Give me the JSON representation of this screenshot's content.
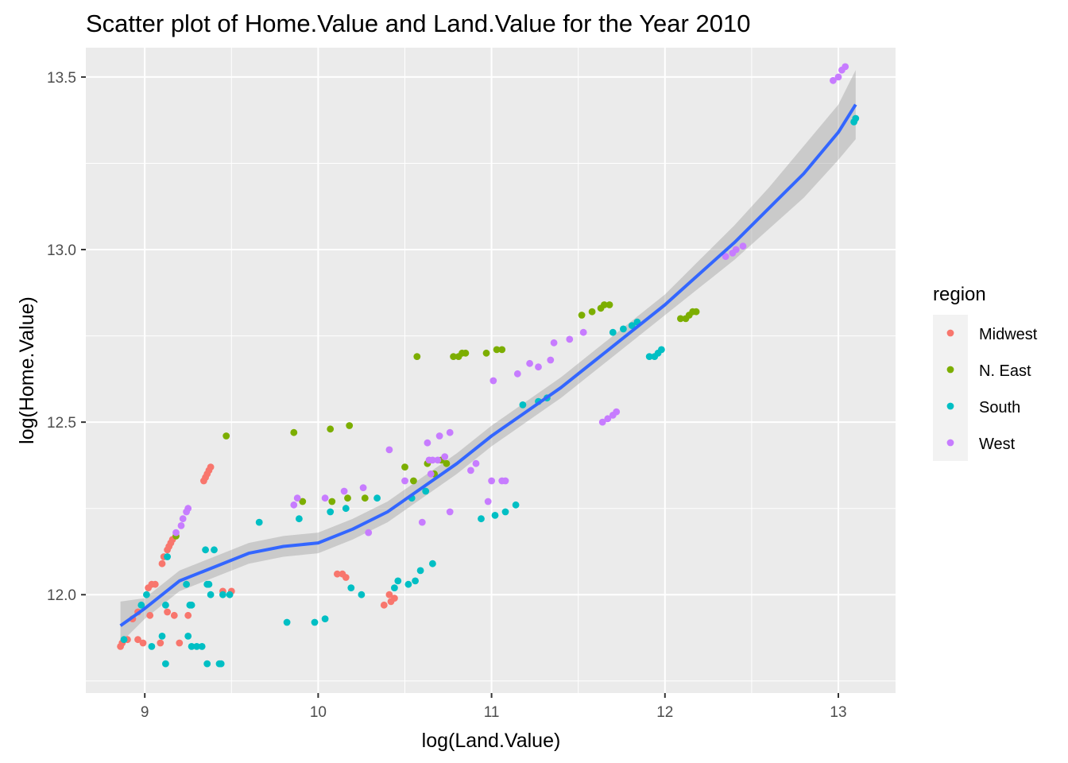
{
  "chart_data": {
    "type": "scatter",
    "title": "Scatter plot of Home.Value and Land.Value for the Year 2010",
    "xlabel": "log(Land.Value)",
    "ylabel": "log(Home.Value)",
    "xlim": [
      8.66,
      13.33
    ],
    "ylim": [
      11.715,
      13.585
    ],
    "xticks": [
      9,
      10,
      11,
      12,
      13
    ],
    "yticks": [
      12.0,
      12.5,
      13.0,
      13.5
    ],
    "xtick_labels": [
      "9",
      "10",
      "11",
      "12",
      "13"
    ],
    "ytick_labels": [
      "12.0",
      "12.5",
      "13.0",
      "13.5"
    ],
    "grid": true,
    "legend": {
      "title": "region",
      "placement": "right"
    },
    "series": [
      {
        "name": "Midwest",
        "color": "#F8766D",
        "points": [
          [
            8.86,
            11.85
          ],
          [
            8.87,
            11.86
          ],
          [
            8.9,
            11.87
          ],
          [
            8.96,
            11.87
          ],
          [
            8.99,
            11.86
          ],
          [
            8.93,
            11.93
          ],
          [
            8.96,
            11.95
          ],
          [
            9.03,
            11.94
          ],
          [
            9.09,
            11.86
          ],
          [
            9.02,
            12.02
          ],
          [
            9.04,
            12.03
          ],
          [
            9.06,
            12.03
          ],
          [
            9.1,
            12.09
          ],
          [
            9.11,
            12.11
          ],
          [
            9.13,
            12.13
          ],
          [
            9.14,
            12.14
          ],
          [
            9.15,
            12.15
          ],
          [
            9.16,
            12.16
          ],
          [
            9.13,
            11.95
          ],
          [
            9.17,
            11.94
          ],
          [
            9.2,
            11.86
          ],
          [
            9.25,
            11.94
          ],
          [
            9.34,
            12.33
          ],
          [
            9.35,
            12.34
          ],
          [
            9.36,
            12.35
          ],
          [
            9.37,
            12.36
          ],
          [
            9.38,
            12.37
          ],
          [
            9.45,
            12.01
          ],
          [
            9.5,
            12.01
          ],
          [
            10.11,
            12.06
          ],
          [
            10.14,
            12.06
          ],
          [
            10.16,
            12.05
          ],
          [
            10.38,
            11.97
          ],
          [
            10.41,
            12.0
          ],
          [
            10.42,
            11.98
          ],
          [
            10.44,
            11.99
          ]
        ]
      },
      {
        "name": "N. East",
        "color": "#7CAE00",
        "points": [
          [
            9.18,
            12.17
          ],
          [
            9.47,
            12.46
          ],
          [
            9.86,
            12.47
          ],
          [
            9.91,
            12.27
          ],
          [
            10.07,
            12.48
          ],
          [
            10.08,
            12.27
          ],
          [
            10.18,
            12.49
          ],
          [
            10.17,
            12.28
          ],
          [
            10.27,
            12.28
          ],
          [
            10.5,
            12.37
          ],
          [
            10.55,
            12.33
          ],
          [
            10.57,
            12.69
          ],
          [
            10.63,
            12.38
          ],
          [
            10.67,
            12.35
          ],
          [
            10.71,
            12.39
          ],
          [
            10.74,
            12.38
          ],
          [
            10.78,
            12.69
          ],
          [
            10.81,
            12.69
          ],
          [
            10.83,
            12.7
          ],
          [
            10.85,
            12.7
          ],
          [
            10.97,
            12.7
          ],
          [
            11.03,
            12.71
          ],
          [
            11.06,
            12.71
          ],
          [
            11.52,
            12.81
          ],
          [
            11.58,
            12.82
          ],
          [
            11.63,
            12.83
          ],
          [
            11.65,
            12.84
          ],
          [
            11.68,
            12.84
          ],
          [
            12.09,
            12.8
          ],
          [
            12.12,
            12.8
          ],
          [
            12.14,
            12.81
          ],
          [
            12.16,
            12.82
          ],
          [
            12.18,
            12.82
          ]
        ]
      },
      {
        "name": "South",
        "color": "#00BFC4",
        "points": [
          [
            8.88,
            11.87
          ],
          [
            8.98,
            11.97
          ],
          [
            9.01,
            12.0
          ],
          [
            9.04,
            11.85
          ],
          [
            9.1,
            11.88
          ],
          [
            9.12,
            11.97
          ],
          [
            9.12,
            11.8
          ],
          [
            9.13,
            12.11
          ],
          [
            9.24,
            12.03
          ],
          [
            9.25,
            11.88
          ],
          [
            9.26,
            11.97
          ],
          [
            9.27,
            11.97
          ],
          [
            9.27,
            11.85
          ],
          [
            9.3,
            11.85
          ],
          [
            9.33,
            11.85
          ],
          [
            9.35,
            12.13
          ],
          [
            9.36,
            12.03
          ],
          [
            9.37,
            12.03
          ],
          [
            9.36,
            11.8
          ],
          [
            9.4,
            12.13
          ],
          [
            9.38,
            12.0
          ],
          [
            9.43,
            11.8
          ],
          [
            9.44,
            11.8
          ],
          [
            9.45,
            12.0
          ],
          [
            9.49,
            12.0
          ],
          [
            9.66,
            12.21
          ],
          [
            9.82,
            11.92
          ],
          [
            9.98,
            11.92
          ],
          [
            10.04,
            11.93
          ],
          [
            9.89,
            12.22
          ],
          [
            10.07,
            12.24
          ],
          [
            10.16,
            12.25
          ],
          [
            10.19,
            12.02
          ],
          [
            10.25,
            12.0
          ],
          [
            10.34,
            12.28
          ],
          [
            10.44,
            12.02
          ],
          [
            10.46,
            12.04
          ],
          [
            10.52,
            12.03
          ],
          [
            10.56,
            12.04
          ],
          [
            10.54,
            12.28
          ],
          [
            10.59,
            12.07
          ],
          [
            10.62,
            12.3
          ],
          [
            10.66,
            12.09
          ],
          [
            10.94,
            12.22
          ],
          [
            11.02,
            12.23
          ],
          [
            11.08,
            12.24
          ],
          [
            11.14,
            12.26
          ],
          [
            11.18,
            12.55
          ],
          [
            11.27,
            12.56
          ],
          [
            11.32,
            12.57
          ],
          [
            11.7,
            12.76
          ],
          [
            11.76,
            12.77
          ],
          [
            11.81,
            12.78
          ],
          [
            11.84,
            12.79
          ],
          [
            11.91,
            12.69
          ],
          [
            11.94,
            12.69
          ],
          [
            11.96,
            12.7
          ],
          [
            11.98,
            12.71
          ],
          [
            13.09,
            13.37
          ],
          [
            13.1,
            13.38
          ]
        ]
      },
      {
        "name": "West",
        "color": "#C77CFF",
        "points": [
          [
            9.18,
            12.18
          ],
          [
            9.21,
            12.2
          ],
          [
            9.22,
            12.22
          ],
          [
            9.24,
            12.24
          ],
          [
            9.25,
            12.25
          ],
          [
            9.86,
            12.26
          ],
          [
            9.88,
            12.28
          ],
          [
            10.04,
            12.28
          ],
          [
            10.15,
            12.3
          ],
          [
            10.26,
            12.31
          ],
          [
            10.29,
            12.18
          ],
          [
            10.41,
            12.42
          ],
          [
            10.5,
            12.33
          ],
          [
            10.6,
            12.21
          ],
          [
            10.64,
            12.39
          ],
          [
            10.66,
            12.39
          ],
          [
            10.69,
            12.39
          ],
          [
            10.7,
            12.46
          ],
          [
            10.73,
            12.4
          ],
          [
            10.76,
            12.24
          ],
          [
            10.76,
            12.47
          ],
          [
            10.63,
            12.44
          ],
          [
            10.65,
            12.35
          ],
          [
            10.88,
            12.36
          ],
          [
            10.91,
            12.38
          ],
          [
            10.98,
            12.27
          ],
          [
            11.0,
            12.33
          ],
          [
            11.06,
            12.33
          ],
          [
            11.08,
            12.33
          ],
          [
            11.01,
            12.62
          ],
          [
            11.15,
            12.64
          ],
          [
            11.22,
            12.67
          ],
          [
            11.27,
            12.66
          ],
          [
            11.34,
            12.68
          ],
          [
            11.36,
            12.73
          ],
          [
            11.45,
            12.74
          ],
          [
            11.53,
            12.76
          ],
          [
            11.64,
            12.5
          ],
          [
            11.67,
            12.51
          ],
          [
            11.7,
            12.52
          ],
          [
            11.72,
            12.53
          ],
          [
            12.35,
            12.98
          ],
          [
            12.39,
            12.99
          ],
          [
            12.41,
            13.0
          ],
          [
            12.45,
            13.01
          ],
          [
            12.97,
            13.49
          ],
          [
            13.0,
            13.5
          ],
          [
            13.02,
            13.52
          ],
          [
            13.04,
            13.53
          ]
        ]
      }
    ],
    "smooth": {
      "color": "#3366FF",
      "band_color": "#999999",
      "x": [
        8.86,
        9.0,
        9.2,
        9.4,
        9.6,
        9.8,
        10.0,
        10.2,
        10.4,
        10.6,
        10.8,
        11.0,
        11.2,
        11.4,
        11.6,
        11.8,
        12.0,
        12.2,
        12.4,
        12.6,
        12.8,
        13.0,
        13.1
      ],
      "y": [
        11.91,
        11.96,
        12.04,
        12.08,
        12.12,
        12.14,
        12.15,
        12.19,
        12.24,
        12.31,
        12.38,
        12.46,
        12.53,
        12.6,
        12.68,
        12.76,
        12.84,
        12.93,
        13.02,
        13.12,
        13.22,
        13.34,
        13.42
      ],
      "lower": [
        11.86,
        11.93,
        12.01,
        12.05,
        12.09,
        12.11,
        12.12,
        12.16,
        12.21,
        12.28,
        12.35,
        12.43,
        12.5,
        12.57,
        12.65,
        12.73,
        12.81,
        12.89,
        12.97,
        13.06,
        13.15,
        13.26,
        13.32
      ],
      "upper": [
        11.98,
        11.99,
        12.07,
        12.11,
        12.15,
        12.17,
        12.18,
        12.22,
        12.27,
        12.34,
        12.41,
        12.49,
        12.56,
        12.63,
        12.71,
        12.79,
        12.87,
        12.97,
        13.07,
        13.18,
        13.3,
        13.42,
        13.52
      ]
    }
  }
}
